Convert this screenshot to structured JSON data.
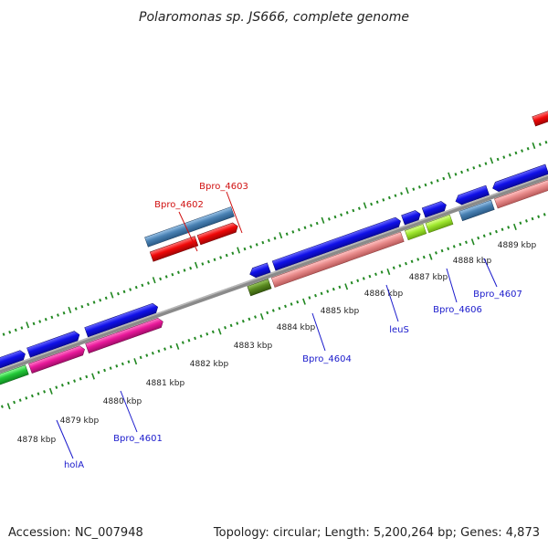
{
  "title": "Polaromonas sp. JS666, complete genome",
  "footer": {
    "accession": "Accession: NC_007948",
    "summary": "Topology: circular; Length: 5,200,264 bp; Genes: 4,873"
  },
  "colors": {
    "blue": "#1010e8",
    "pink": "#e8189a",
    "red": "#f00808",
    "steel": "#4a82b4",
    "salmon": "#e88a8a",
    "lime": "#a0e830",
    "olive": "#5a8a20",
    "green": "#22c838",
    "purple": "#3a3aa0",
    "backbone": "#888888",
    "tick": "#228822",
    "label_blue": "#1a1acc",
    "label_red": "#d01010"
  },
  "kbp_labels": [
    "4878 kbp",
    "4879 kbp",
    "4880 kbp",
    "4881 kbp",
    "4882 kbp",
    "4883 kbp",
    "4884 kbp",
    "4885 kbp",
    "4886 kbp",
    "4887 kbp",
    "4888 kbp",
    "4889 kbp"
  ],
  "gene_labels": {
    "bpro_4603": "Bpro_4603",
    "bpro_4602": "Bpro_4602",
    "bpro_4604": "Bpro_4604",
    "leus": "leuS",
    "bpro_4606": "Bpro_4606",
    "bpro_4607": "Bpro_4607",
    "bpro_4601": "Bpro_4601",
    "hola": "holA"
  }
}
